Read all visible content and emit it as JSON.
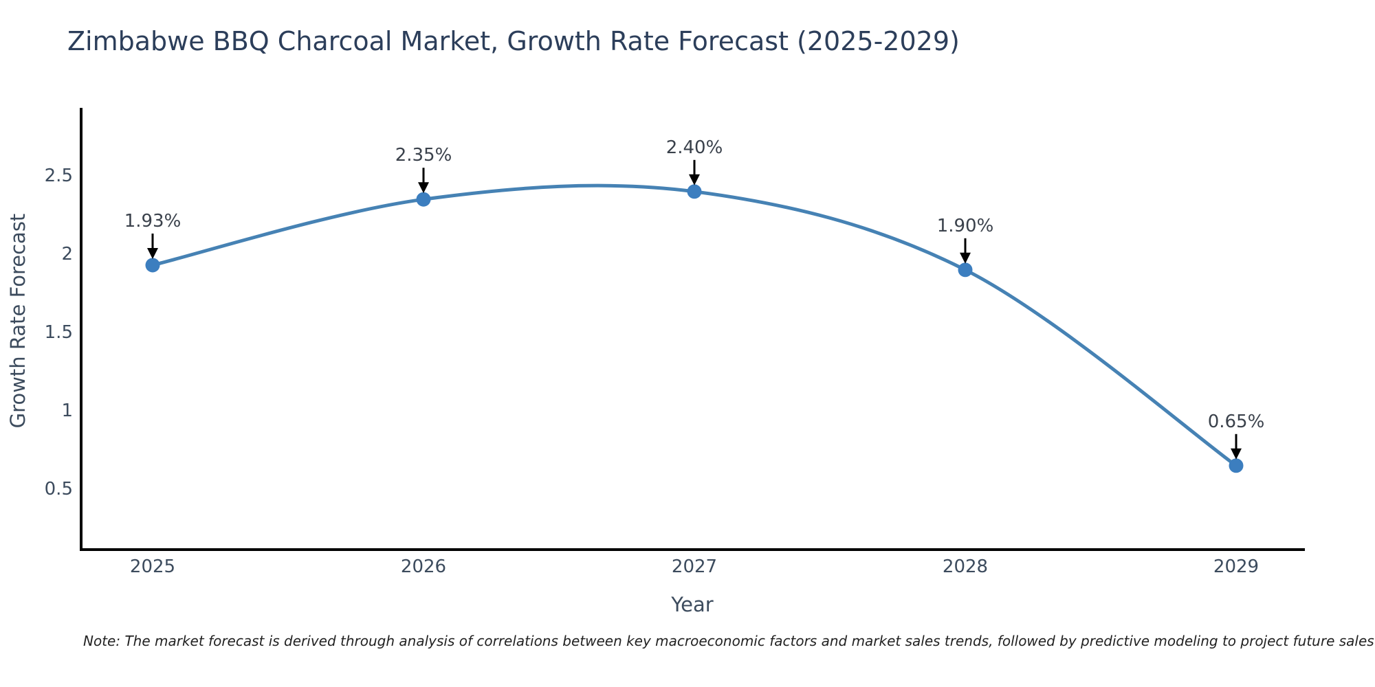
{
  "title": "Zimbabwe BBQ Charcoal Market, Growth Rate Forecast (2025-2029)",
  "note": "Note: The market forecast is derived through analysis of correlations between key macroeconomic factors and market sales trends, followed by predictive modeling to project future sales",
  "chart_data": {
    "type": "line",
    "title": "Zimbabwe BBQ Charcoal Market, Growth Rate Forecast (2025-2029)",
    "xlabel": "Year",
    "ylabel": "Growth Rate Forecast",
    "x": [
      2025,
      2026,
      2027,
      2028,
      2029
    ],
    "series": [
      {
        "name": "Growth Rate Forecast",
        "values": [
          1.93,
          2.35,
          2.4,
          1.9,
          0.65
        ]
      }
    ],
    "point_labels": [
      "1.93%",
      "2.35%",
      "2.40%",
      "1.90%",
      "0.65%"
    ],
    "xticks": [
      "2025",
      "2026",
      "2027",
      "2028",
      "2029"
    ],
    "yticks": [
      0.5,
      1,
      1.5,
      2,
      2.5
    ],
    "ytick_labels": [
      "0.5",
      "1",
      "1.5",
      "2",
      "2.5"
    ],
    "xlim": [
      2024.74,
      2029.26
    ],
    "ylim": [
      0.11,
      2.95
    ],
    "grid": false,
    "legend": "none",
    "line_style": "smooth-spline",
    "marker": "circle",
    "colors": {
      "line": "#4682b4",
      "marker": "#3c7ebf",
      "axis": "#000000",
      "tick_text": "#3c4b5d",
      "annotation_text": "#3a414b",
      "arrow": "#000000",
      "title_text": "#2c3e5a",
      "note_text": "#222222",
      "background": "#ffffff"
    }
  }
}
